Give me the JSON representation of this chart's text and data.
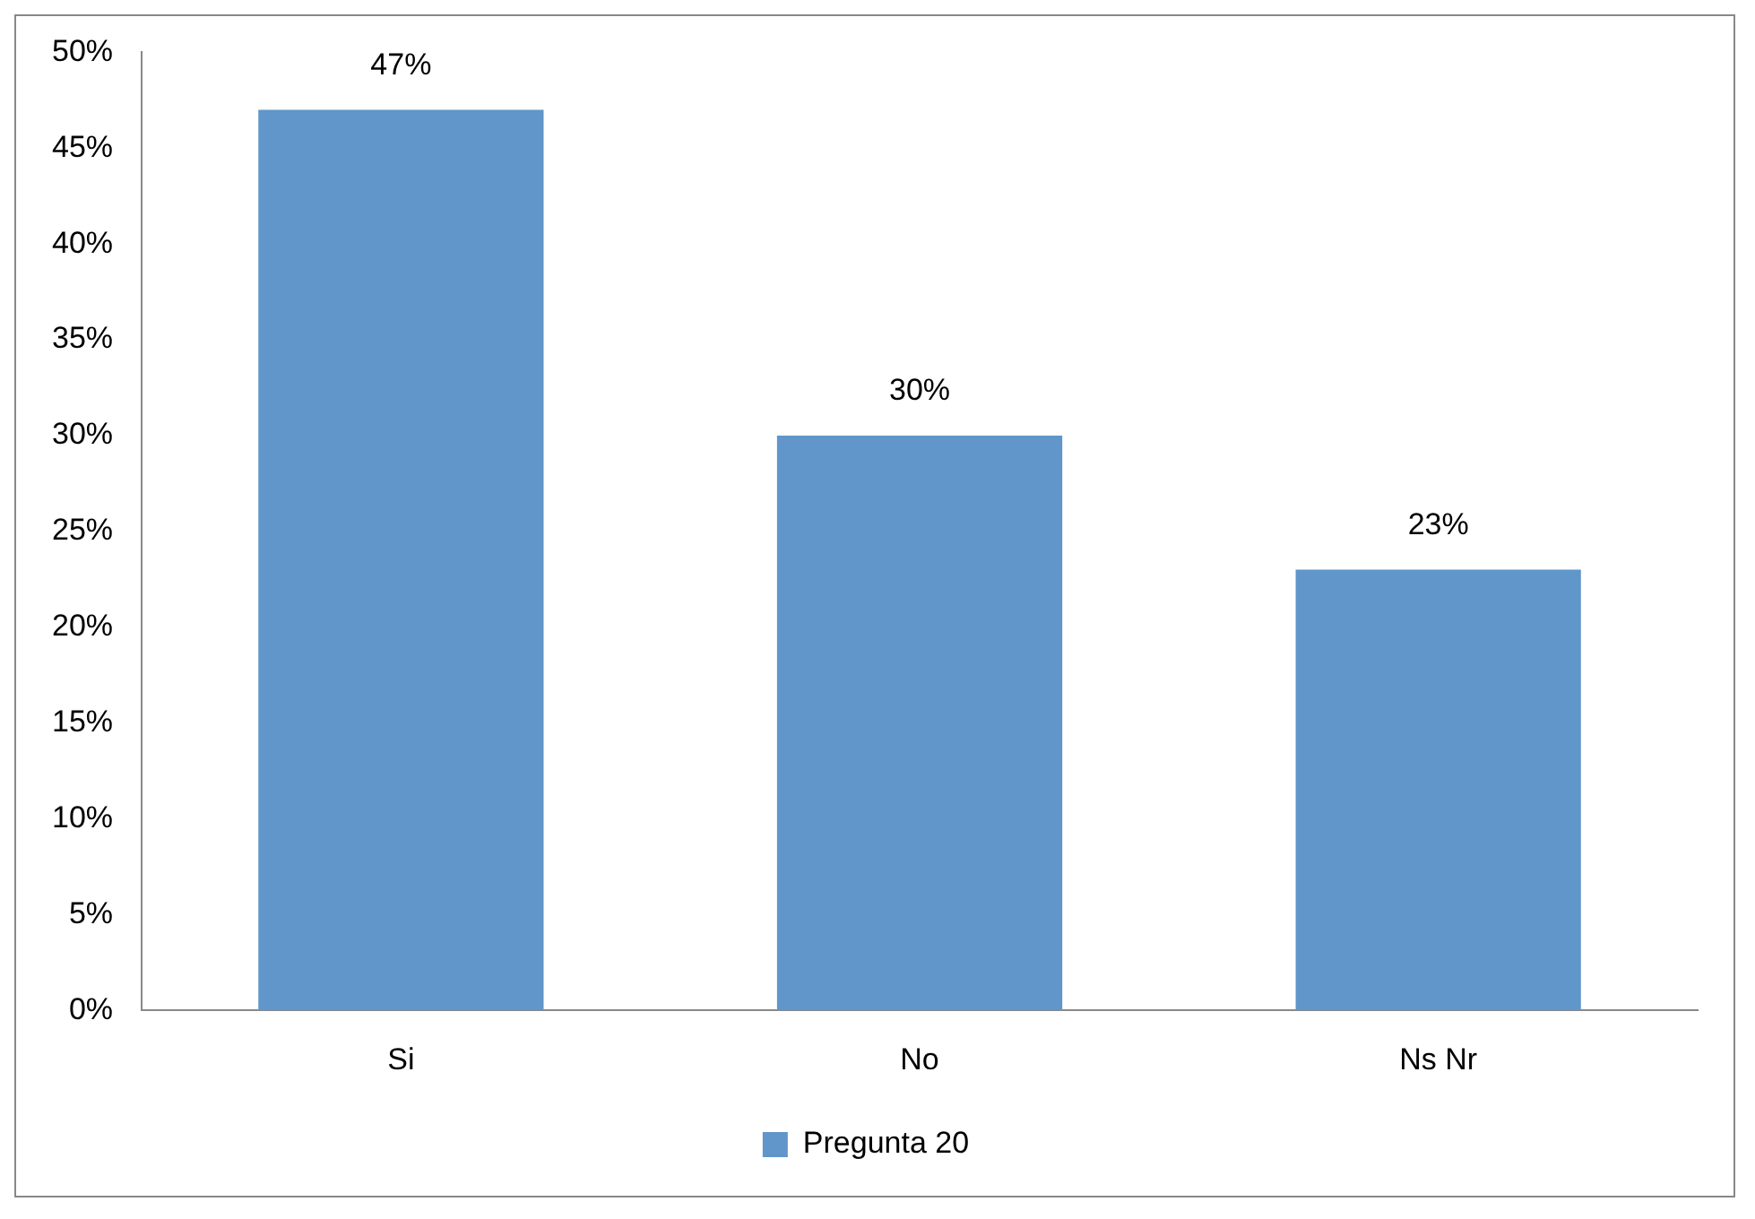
{
  "chart_data": {
    "type": "bar",
    "categories": [
      "Si",
      "No",
      "Ns Nr"
    ],
    "series": [
      {
        "name": "Pregunta 20",
        "color": "#6096c9",
        "values": [
          47,
          30,
          23
        ],
        "value_labels": [
          "47%",
          "30%",
          "23%"
        ]
      }
    ],
    "ylim": [
      0,
      50
    ],
    "yticks": [
      {
        "value": 0,
        "label": "0%"
      },
      {
        "value": 5,
        "label": "5%"
      },
      {
        "value": 10,
        "label": "10%"
      },
      {
        "value": 15,
        "label": "15%"
      },
      {
        "value": 20,
        "label": "20%"
      },
      {
        "value": 25,
        "label": "25%"
      },
      {
        "value": 30,
        "label": "30%"
      },
      {
        "value": 35,
        "label": "35%"
      },
      {
        "value": 40,
        "label": "40%"
      },
      {
        "value": 45,
        "label": "45%"
      },
      {
        "value": 50,
        "label": "50%"
      }
    ],
    "grid": false,
    "legend": "bottom"
  }
}
